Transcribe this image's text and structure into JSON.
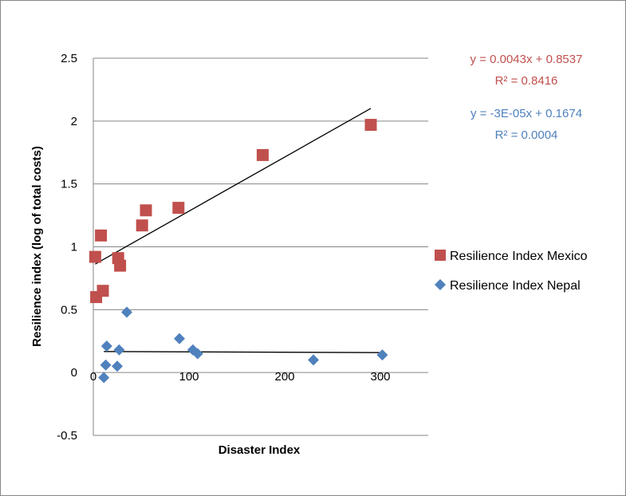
{
  "chart_data": {
    "type": "scatter",
    "title": "",
    "xlabel": "Disaster Index",
    "ylabel": "Resilience index (log of total costs)",
    "xlim": [
      0,
      350
    ],
    "ylim": [
      -0.5,
      2.5
    ],
    "x_ticks": [
      "0",
      "100",
      "200",
      "300"
    ],
    "y_ticks": [
      "-0.5",
      "0",
      "0.5",
      "1",
      "1.5",
      "2",
      "2.5"
    ],
    "grid": "horizontal",
    "legend_position": "right",
    "series": [
      {
        "name": "Resilience Index Mexico",
        "color": "#c0504d",
        "marker": "square",
        "points": [
          [
            2,
            0.92
          ],
          [
            3,
            0.6
          ],
          [
            8,
            1.09
          ],
          [
            10,
            0.65
          ],
          [
            26,
            0.91
          ],
          [
            28,
            0.85
          ],
          [
            51,
            1.17
          ],
          [
            55,
            1.29
          ],
          [
            89,
            1.31
          ],
          [
            177,
            1.73
          ],
          [
            290,
            1.97
          ]
        ],
        "trendline": {
          "slope": 0.0043,
          "intercept": 0.8537,
          "x_range": [
            2,
            290
          ],
          "equation": "y = 0.0043x + 0.8537",
          "r2": "R² = 0.8416"
        }
      },
      {
        "name": "Resilience Index Nepal",
        "color": "#4f81bd",
        "marker": "diamond",
        "points": [
          [
            11,
            -0.04
          ],
          [
            13,
            0.06
          ],
          [
            14,
            0.21
          ],
          [
            25,
            0.05
          ],
          [
            27,
            0.18
          ],
          [
            35,
            0.48
          ],
          [
            90,
            0.27
          ],
          [
            104,
            0.18
          ],
          [
            109,
            0.15
          ],
          [
            230,
            0.1
          ],
          [
            302,
            0.14
          ]
        ],
        "trendline": {
          "slope": -3e-05,
          "intercept": 0.1674,
          "x_range": [
            11,
            302
          ],
          "equation": "y = -3E-05x + 0.1674",
          "r2": "R² = 0.0004"
        }
      }
    ]
  }
}
